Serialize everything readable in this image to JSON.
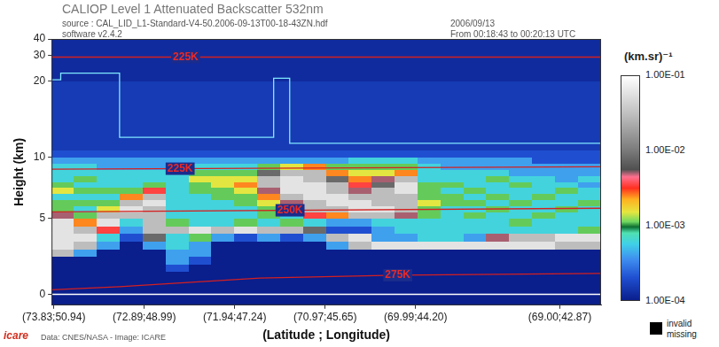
{
  "chart_data": {
    "type": "heatmap",
    "title": "CALIOP Level 1 Attenuated Backscatter 532nm",
    "subtitle": [
      "source : CAL_LID_L1-Standard-V4-50.2006-09-13T00-18-43ZN.hdf",
      "software v2.4.2"
    ],
    "subtitle_right": [
      "2006/09/13",
      "From 00:18:43 to 00:20:13 UTC"
    ],
    "credit": "Data: CNES/NASA - Image: ICARE",
    "logo": "icare",
    "x_label": "(Latitude ; Longitude)",
    "y_label": "Height (km)",
    "xlim": [
      0,
      24
    ],
    "xticks": [
      {
        "value": 0.1,
        "label": "(73.83;50.94)"
      },
      {
        "value": 4.05,
        "label": "(72.89;48.99)"
      },
      {
        "value": 8,
        "label": "(71.94;47.24)"
      },
      {
        "value": 11.95,
        "label": "(70.97;45.65)"
      },
      {
        "value": 15.9,
        "label": "(69.99;44.20)"
      },
      {
        "value": 22.2,
        "label": "(69.00;42.87)"
      }
    ],
    "ylim": [
      -0.7,
      40
    ],
    "yticks": [
      0,
      5,
      10,
      20,
      30,
      40
    ],
    "grid": false,
    "heatmap": {
      "x_edges": [
        0,
        1,
        2,
        3,
        4,
        5,
        6,
        7,
        8,
        9,
        10,
        11,
        12,
        13,
        14,
        15,
        16,
        17,
        18,
        19,
        20,
        21,
        22,
        23,
        24
      ],
      "y_edges": [
        -0.7,
        0,
        0.5,
        1,
        1.5,
        2,
        2.5,
        3,
        3.5,
        4,
        4.5,
        5,
        5.5,
        6,
        6.5,
        7,
        7.5,
        8,
        8.5,
        9,
        9.5,
        10,
        11,
        12,
        14,
        16,
        20,
        25,
        30,
        40
      ],
      "values": [
        [
          0.0001,
          0.0001,
          0.0001,
          0.0001,
          0.0001,
          0.0001,
          0.0001,
          0.0001,
          0.0001,
          0.0001,
          0.0001,
          0.0001,
          0.0001,
          0.0001,
          0.0001,
          0.0001,
          0.0001,
          0.0001,
          0.0001,
          0.0001,
          0.0001,
          0.0001,
          0.0001,
          0.0001
        ],
        [
          0.0001,
          0.0001,
          0.0001,
          0.0001,
          0.0001,
          0.0001,
          0.0001,
          0.0001,
          0.0001,
          0.0001,
          0.0001,
          0.0001,
          0.0001,
          0.0001,
          0.0001,
          0.0001,
          0.0001,
          0.0001,
          0.0001,
          0.0001,
          0.0001,
          0.0001,
          0.0001,
          0.0001
        ],
        [
          0.0001,
          0.0001,
          0.0001,
          0.0001,
          0.0001,
          0.0001,
          0.0001,
          0.0001,
          0.0001,
          0.0001,
          0.0001,
          0.0001,
          0.0001,
          0.0001,
          0.0001,
          0.0001,
          0.0001,
          0.0001,
          0.0001,
          0.0001,
          0.0001,
          0.0001,
          0.0001,
          0.0001
        ],
        [
          0.0001,
          0.0001,
          0.0001,
          0.0001,
          0.0001,
          0.0001,
          0.0001,
          0.0001,
          0.0001,
          0.0001,
          0.0001,
          0.0001,
          0.0001,
          0.0001,
          0.0001,
          0.0001,
          0.0001,
          0.0001,
          0.0001,
          0.0001,
          0.0001,
          0.0001,
          0.0001,
          0.0001
        ],
        [
          0.0001,
          0.0001,
          0.0001,
          0.0001,
          0.0001,
          0.0002,
          0.0001,
          0.0001,
          0.0001,
          0.0001,
          0.0001,
          0.0001,
          0.0001,
          0.0001,
          0.0001,
          0.0001,
          0.0001,
          0.0001,
          0.0001,
          0.0001,
          0.0001,
          0.0001,
          0.0001,
          0.0001
        ],
        [
          0.0001,
          0.0001,
          0.0001,
          0.0001,
          0.0001,
          0.0004,
          0.0002,
          0.0001,
          0.0001,
          0.0001,
          0.0001,
          0.0001,
          0.0001,
          0.0001,
          0.0001,
          0.0001,
          0.0001,
          0.0001,
          0.0001,
          0.0001,
          0.0001,
          0.0001,
          0.0001,
          0.0001
        ],
        [
          0.03,
          0.0004,
          0.0001,
          0.0001,
          0.0001,
          0.0004,
          0.0004,
          0.0001,
          0.0001,
          0.0001,
          0.0001,
          0.0001,
          0.0001,
          0.0001,
          0.0001,
          0.0001,
          0.0001,
          0.0001,
          0.0001,
          0.0001,
          0.0001,
          0.0001,
          0.0001,
          0.0001
        ],
        [
          0.06,
          0.03,
          0.0004,
          0.0001,
          0.0004,
          0.0006,
          0.0004,
          0.0001,
          0.0001,
          0.0001,
          0.0001,
          0.0001,
          0.0004,
          0.03,
          0.06,
          0.06,
          0.06,
          0.06,
          0.06,
          0.06,
          0.06,
          0.06,
          0.03,
          0.03
        ],
        [
          0.06,
          0.06,
          0.0006,
          0.0002,
          0.008,
          0.0006,
          0.0011,
          0.0004,
          0.0002,
          0.0004,
          0.0002,
          0.0004,
          0.03,
          0.06,
          0.0004,
          0.0004,
          0.0006,
          0.0006,
          0.0004,
          0.005,
          0.03,
          0.03,
          0.06,
          0.06
        ],
        [
          0.06,
          0.03,
          0.0035,
          0.0004,
          0.03,
          0.03,
          0.06,
          0.03,
          0.06,
          0.03,
          0.03,
          0.008,
          0.0002,
          0.0002,
          0.0004,
          0.0006,
          0.0006,
          0.0006,
          0.0006,
          0.0006,
          0.0006,
          0.0006,
          0.0006,
          0.0011
        ],
        [
          0.06,
          0.0025,
          0.06,
          0.0006,
          0.03,
          0.0011,
          0.0006,
          0.0006,
          0.0011,
          0.0006,
          0.0011,
          0.0006,
          0.0004,
          0.0004,
          0.0006,
          0.0006,
          0.0006,
          0.0006,
          0.0006,
          0.0006,
          0.0011,
          0.0006,
          0.0006,
          0.0006
        ],
        [
          0.005,
          0.0011,
          0.03,
          0.03,
          0.03,
          0.0006,
          0.0006,
          0.0006,
          0.0006,
          0.0011,
          0.0006,
          0.0035,
          0.0025,
          0.03,
          0.03,
          0.005,
          0.0011,
          0.0006,
          0.0011,
          0.0006,
          0.0006,
          0.0011,
          0.0006,
          0.0006
        ],
        [
          0.0011,
          0.0006,
          0.0015,
          0.06,
          0.03,
          0.0006,
          0.0006,
          0.0006,
          0.0006,
          0.0011,
          0.0025,
          0.03,
          0.03,
          0.06,
          0.06,
          0.03,
          0.0011,
          0.0006,
          0.0006,
          0.0011,
          0.0006,
          0.0006,
          0.0011,
          0.0006
        ],
        [
          0.0011,
          0.0011,
          0.0011,
          0.03,
          0.06,
          0.0006,
          0.0006,
          0.0006,
          0.0011,
          0.0015,
          0.005,
          0.03,
          0.06,
          0.06,
          0.03,
          0.03,
          0.0015,
          0.0011,
          0.0011,
          0.0006,
          0.0011,
          0.0006,
          0.0006,
          0.0011
        ],
        [
          0.0006,
          0.0006,
          0.0006,
          0.0025,
          0.03,
          0.0006,
          0.0006,
          0.0011,
          0.0011,
          0.0025,
          0.03,
          0.06,
          0.06,
          0.03,
          0.03,
          0.03,
          0.0011,
          0.0011,
          0.0006,
          0.0011,
          0.0006,
          0.0011,
          0.0006,
          0.0006
        ],
        [
          0.0015,
          0.0011,
          0.0011,
          0.0011,
          0.0035,
          0.0006,
          0.0011,
          0.0011,
          0.0015,
          0.005,
          0.06,
          0.06,
          0.03,
          0.005,
          0.03,
          0.06,
          0.0011,
          0.0006,
          0.0011,
          0.0006,
          0.0006,
          0.0006,
          0.0011,
          0.0006
        ],
        [
          0.0011,
          0.0006,
          0.0006,
          0.0006,
          0.0011,
          0.0006,
          0.0011,
          0.0015,
          0.0025,
          0.03,
          0.06,
          0.06,
          0.03,
          0.0035,
          0.008,
          0.06,
          0.0011,
          0.0011,
          0.0006,
          0.0006,
          0.0011,
          0.0006,
          0.0006,
          0.0004
        ],
        [
          0.0006,
          0.0011,
          0.0006,
          0.0006,
          0.0006,
          0.0006,
          0.0015,
          0.0015,
          0.0015,
          0.03,
          0.06,
          0.03,
          0.008,
          0.0025,
          0.005,
          0.03,
          0.0006,
          0.0006,
          0.0006,
          0.0011,
          0.0006,
          0.0006,
          0.0004,
          0.0006
        ],
        [
          0.0006,
          0.0006,
          0.0006,
          0.0006,
          0.0006,
          0.0006,
          0.0011,
          0.0011,
          0.0011,
          0.008,
          0.03,
          0.03,
          0.0025,
          0.0015,
          0.0015,
          0.0025,
          0.0006,
          0.0006,
          0.0006,
          0.0006,
          0.0004,
          0.0004,
          0.0004,
          0.0004
        ],
        [
          0.0006,
          0.0006,
          0.0004,
          0.0004,
          0.0004,
          0.0004,
          0.0006,
          0.0006,
          0.0006,
          0.0011,
          0.0015,
          0.0025,
          0.0011,
          0.0011,
          0.0011,
          0.0011,
          0.0006,
          0.0004,
          0.0004,
          0.0004,
          0.0004,
          0.0004,
          0.0004,
          0.0004
        ],
        [
          0.0004,
          0.0004,
          0.0004,
          0.0004,
          0.0004,
          0.0004,
          0.0004,
          0.0004,
          0.0004,
          0.0004,
          0.0004,
          0.0004,
          0.0004,
          0.0006,
          0.0006,
          0.0006,
          0.0004,
          0.0004,
          0.0004,
          0.0004,
          0.0004,
          0.0002,
          0.0002,
          0.0002
        ],
        [
          0.0002,
          0.0002,
          0.0002,
          0.0002,
          0.0002,
          0.0002,
          0.0002,
          0.0002,
          0.0002,
          0.0002,
          0.0002,
          0.0002,
          0.0002,
          0.0002,
          0.0002,
          0.0002,
          0.0002,
          0.0002,
          0.0002,
          0.0002,
          0.0002,
          0.0002,
          0.0002,
          0.0002
        ],
        [
          0.00015,
          0.00015,
          0.00015,
          0.00015,
          0.00015,
          0.00015,
          0.00015,
          0.00015,
          0.00015,
          0.00015,
          0.00015,
          0.00015,
          0.00015,
          0.00015,
          0.00015,
          0.00015,
          0.00015,
          0.00015,
          0.00015,
          0.00015,
          0.00015,
          0.00015,
          0.00015,
          0.00015
        ],
        [
          0.00015,
          0.00015,
          0.00015,
          0.00015,
          0.00015,
          0.00015,
          0.00015,
          0.00015,
          0.00015,
          0.00015,
          0.00015,
          0.00015,
          0.00015,
          0.00015,
          0.00015,
          0.00015,
          0.00015,
          0.00015,
          0.00015,
          0.00015,
          0.00015,
          0.00015,
          0.00015,
          0.00015
        ],
        [
          0.00015,
          0.00015,
          0.00015,
          0.00015,
          0.00015,
          0.00015,
          0.00015,
          0.00015,
          0.00015,
          0.00015,
          0.00015,
          0.00015,
          0.00015,
          0.00015,
          0.00015,
          0.00015,
          0.00015,
          0.00015,
          0.00015,
          0.00015,
          0.00015,
          0.00015,
          0.00015,
          0.00015
        ],
        [
          0.00015,
          0.00015,
          0.00015,
          0.00015,
          0.00015,
          0.00015,
          0.00015,
          0.00015,
          0.00015,
          0.00015,
          0.00015,
          0.00015,
          0.00015,
          0.00015,
          0.00015,
          0.00015,
          0.00015,
          0.00015,
          0.00015,
          0.00015,
          0.00015,
          0.00015,
          0.00015,
          0.00015
        ],
        [
          0.00012,
          0.00012,
          0.00012,
          0.00012,
          0.00012,
          0.00012,
          0.00012,
          0.00012,
          0.00012,
          0.00012,
          0.00012,
          0.00012,
          0.00012,
          0.00012,
          0.00012,
          0.00012,
          0.00012,
          0.00012,
          0.00012,
          0.00012,
          0.00012,
          0.00012,
          0.00012,
          0.00012
        ],
        [
          0.00012,
          0.00012,
          0.00012,
          0.00012,
          0.00012,
          0.00012,
          0.00012,
          0.00012,
          0.00012,
          0.00012,
          0.00012,
          0.00012,
          0.00012,
          0.00012,
          0.00012,
          0.00012,
          0.00012,
          0.00012,
          0.00012,
          0.00012,
          0.00012,
          0.00012,
          0.00012,
          0.00012
        ],
        [
          0.00012,
          0.00012,
          0.00012,
          0.00012,
          0.00012,
          0.00012,
          0.00012,
          0.00012,
          0.00012,
          0.00012,
          0.00012,
          0.00012,
          0.00012,
          0.00012,
          0.00012,
          0.00012,
          0.00012,
          0.00012,
          0.00012,
          0.00012,
          0.00012,
          0.00012,
          0.00012,
          0.00012
        ]
      ]
    },
    "colorbar": {
      "title": "(km.sr)⁻¹",
      "range": [
        0.0001,
        0.1
      ],
      "ticks": [
        {
          "value": 0.1,
          "label": "1.00E-01"
        },
        {
          "value": 0.01,
          "label": "1.00E-02"
        },
        {
          "value": 0.001,
          "label": "1.00E-03"
        },
        {
          "value": 0.0001,
          "label": "1.00E-04"
        }
      ]
    },
    "missing_label": "invalid missing",
    "missing_color": "#000000",
    "series": [
      {
        "name": "225K",
        "color": "#d42020",
        "x": [
          0,
          24
        ],
        "values": [
          29.3,
          29.3
        ]
      },
      {
        "name": "225K",
        "color": "#d42020",
        "x": [
          0,
          24
        ],
        "values": [
          9,
          9.2
        ]
      },
      {
        "name": "250K",
        "color": "#d42020",
        "x": [
          0,
          24
        ],
        "values": [
          5.5,
          5.8
        ]
      },
      {
        "name": "275K",
        "color": "#d42020",
        "x": [
          0,
          2.97,
          5.15,
          9.1,
          15.05,
          24
        ],
        "values": [
          0.3,
          0.5,
          0.7,
          1.07,
          1.25,
          1.37
        ]
      },
      {
        "color": "#80e8ff",
        "x": [
          0,
          0.4,
          0.4,
          2.97,
          2.97,
          9.7,
          9.7,
          10.4,
          10.4,
          24
        ],
        "values": [
          20.4,
          20.4,
          23,
          23,
          12.6,
          12.6,
          21,
          21,
          11.8,
          11.8
        ]
      },
      {
        "color": "#ffffff",
        "x": [
          0,
          24
        ],
        "values": [
          0,
          0
        ]
      }
    ]
  }
}
